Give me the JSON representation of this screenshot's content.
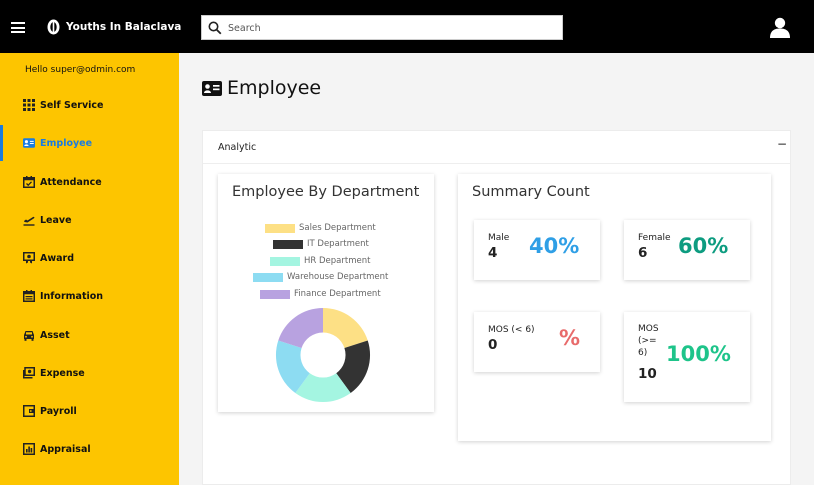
{
  "app": {
    "brand": "Youths In Balaclava"
  },
  "search": {
    "placeholder": "Search",
    "value": ""
  },
  "sidebar": {
    "greeting": "Hello super@odmin.com",
    "items": [
      {
        "label": "Self Service",
        "icon": "grid-icon",
        "active": false
      },
      {
        "label": "Employee",
        "icon": "id-card-icon",
        "active": true
      },
      {
        "label": "Attendance",
        "icon": "calendar-check-icon",
        "active": false
      },
      {
        "label": "Leave",
        "icon": "plane-departure-icon",
        "active": false
      },
      {
        "label": "Award",
        "icon": "award-icon",
        "active": false
      },
      {
        "label": "Information",
        "icon": "calendar-icon",
        "active": false
      },
      {
        "label": "Asset",
        "icon": "car-icon",
        "active": false
      },
      {
        "label": "Expense",
        "icon": "money-icon",
        "active": false
      },
      {
        "label": "Payroll",
        "icon": "wallet-icon",
        "active": false
      },
      {
        "label": "Appraisal",
        "icon": "chart-icon",
        "active": false
      }
    ]
  },
  "page": {
    "title": "Employee"
  },
  "analytic": {
    "label": "Analytic",
    "collapse_symbol": "−"
  },
  "department_chart": {
    "title": "Employee By Department",
    "legend": [
      {
        "label": "Sales Department",
        "color": "#fde085"
      },
      {
        "label": "IT Department",
        "color": "#333333"
      },
      {
        "label": "HR Department",
        "color": "#a4f5e1"
      },
      {
        "label": "Warehouse Department",
        "color": "#8ddcf2"
      },
      {
        "label": "Finance Department",
        "color": "#b8a2e0"
      }
    ]
  },
  "summary": {
    "title": "Summary Count",
    "stats": [
      {
        "label": "Male",
        "count": "4",
        "percent": "40%",
        "color": "#2f9fe6"
      },
      {
        "label": "Female",
        "count": "6",
        "percent": "60%",
        "color": "#0d9c80"
      },
      {
        "label": "MOS (< 6)",
        "count": "0",
        "percent": "%",
        "color": "#e86b6b"
      },
      {
        "label": "MOS (>= 6)",
        "count": "10",
        "percent": "100%",
        "color": "#1ec48a"
      }
    ]
  }
}
